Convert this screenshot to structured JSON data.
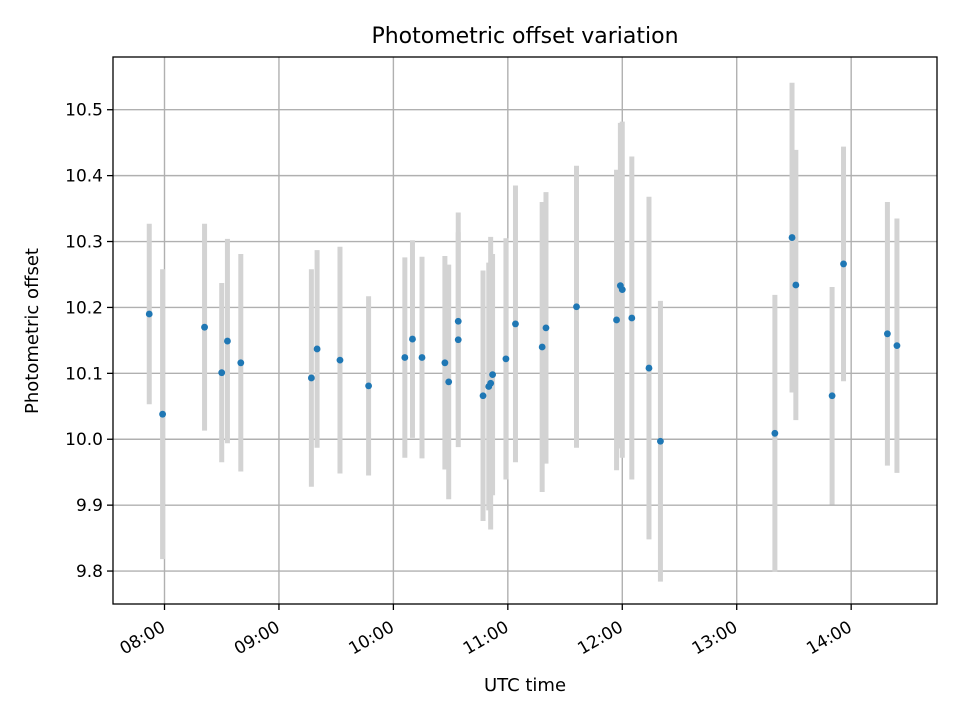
{
  "chart_data": {
    "type": "scatter",
    "title": "Photometric offset variation",
    "xlabel": "UTC time",
    "ylabel": "Photometric offset",
    "x_axis_type": "time",
    "xlim": [
      "07:33",
      "14:45"
    ],
    "ylim": [
      9.75,
      10.58
    ],
    "xticks": [
      "08:00",
      "09:00",
      "10:00",
      "11:00",
      "12:00",
      "13:00",
      "14:00"
    ],
    "yticks": [
      9.8,
      9.9,
      10.0,
      10.1,
      10.2,
      10.3,
      10.4,
      10.5
    ],
    "grid": true,
    "marker_color": "#1f77b4",
    "errorbar_color": "#d3d3d3",
    "series": [
      {
        "points": [
          {
            "x": "07:52",
            "y": 10.19,
            "yerr": 0.137
          },
          {
            "x": "07:59",
            "y": 10.038,
            "yerr": 0.22
          },
          {
            "x": "08:21",
            "y": 10.17,
            "yerr": 0.157
          },
          {
            "x": "08:30",
            "y": 10.101,
            "yerr": 0.136
          },
          {
            "x": "08:33",
            "y": 10.149,
            "yerr": 0.155
          },
          {
            "x": "08:40",
            "y": 10.116,
            "yerr": 0.165
          },
          {
            "x": "09:17",
            "y": 10.093,
            "yerr": 0.165
          },
          {
            "x": "09:20",
            "y": 10.137,
            "yerr": 0.15
          },
          {
            "x": "09:32",
            "y": 10.12,
            "yerr": 0.172
          },
          {
            "x": "09:47",
            "y": 10.081,
            "yerr": 0.136
          },
          {
            "x": "10:06",
            "y": 10.124,
            "yerr": 0.152
          },
          {
            "x": "10:10",
            "y": 10.152,
            "yerr": 0.15
          },
          {
            "x": "10:15",
            "y": 10.124,
            "yerr": 0.153
          },
          {
            "x": "10:27",
            "y": 10.116,
            "yerr": 0.162
          },
          {
            "x": "10:29",
            "y": 10.087,
            "yerr": 0.178
          },
          {
            "x": "10:34",
            "y": 10.179,
            "yerr": 0.165
          },
          {
            "x": "10:34",
            "y": 10.151,
            "yerr": 0.163
          },
          {
            "x": "10:47",
            "y": 10.066,
            "yerr": 0.19
          },
          {
            "x": "10:50",
            "y": 10.08,
            "yerr": 0.188
          },
          {
            "x": "10:51",
            "y": 10.085,
            "yerr": 0.222
          },
          {
            "x": "10:52",
            "y": 10.098,
            "yerr": 0.183
          },
          {
            "x": "10:59",
            "y": 10.122,
            "yerr": 0.183
          },
          {
            "x": "11:04",
            "y": 10.175,
            "yerr": 0.21
          },
          {
            "x": "11:18",
            "y": 10.14,
            "yerr": 0.22
          },
          {
            "x": "11:20",
            "y": 10.169,
            "yerr": 0.206
          },
          {
            "x": "11:36",
            "y": 10.201,
            "yerr": 0.214
          },
          {
            "x": "11:57",
            "y": 10.181,
            "yerr": 0.228
          },
          {
            "x": "11:59",
            "y": 10.233,
            "yerr": 0.247
          },
          {
            "x": "12:00",
            "y": 10.227,
            "yerr": 0.255
          },
          {
            "x": "12:05",
            "y": 10.184,
            "yerr": 0.245
          },
          {
            "x": "12:14",
            "y": 10.108,
            "yerr": 0.26
          },
          {
            "x": "12:20",
            "y": 9.997,
            "yerr": 0.213
          },
          {
            "x": "13:20",
            "y": 10.009,
            "yerr": 0.21
          },
          {
            "x": "13:29",
            "y": 10.306,
            "yerr": 0.235
          },
          {
            "x": "13:31",
            "y": 10.234,
            "yerr": 0.205
          },
          {
            "x": "13:50",
            "y": 10.066,
            "yerr": 0.165
          },
          {
            "x": "13:56",
            "y": 10.266,
            "yerr": 0.178
          },
          {
            "x": "14:19",
            "y": 10.16,
            "yerr": 0.2
          },
          {
            "x": "14:24",
            "y": 10.142,
            "yerr": 0.193
          }
        ]
      }
    ]
  }
}
